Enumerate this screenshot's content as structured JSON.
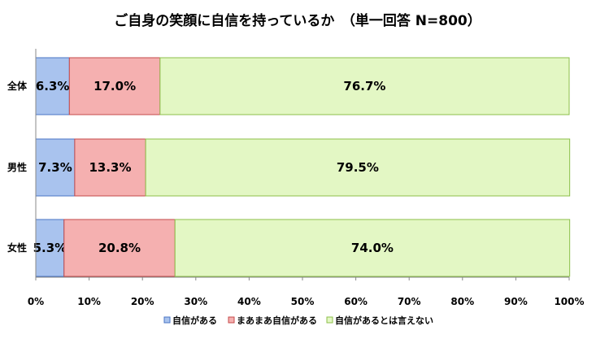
{
  "chart_data": {
    "type": "bar",
    "orientation": "horizontal",
    "stacked": true,
    "percent": true,
    "title": "ご自身の笑顔に自信を持っているか　（単一回答 N=800）",
    "categories": [
      "全体",
      "男性",
      "女性"
    ],
    "series": [
      {
        "name": "自信がある",
        "values": [
          6.3,
          7.3,
          5.3
        ],
        "color": "#a9c3ee",
        "edge": "#4a74c4"
      },
      {
        "name": "まあまあ自信がある",
        "values": [
          17.0,
          13.3,
          20.8
        ],
        "color": "#f5b0b0",
        "edge": "#c44a4a"
      },
      {
        "name": "自信があるとは言えない",
        "values": [
          76.7,
          79.5,
          74.0
        ],
        "color": "#e3f7c4",
        "edge": "#8cbf4a"
      }
    ],
    "value_labels": [
      [
        "6.3%",
        "17.0%",
        "76.7%"
      ],
      [
        "7.3%",
        "13.3%",
        "79.5%"
      ],
      [
        "5.3%",
        "20.8%",
        "74.0%"
      ]
    ],
    "xlim": [
      0,
      100
    ],
    "xticks": [
      "0%",
      "10%",
      "20%",
      "30%",
      "40%",
      "50%",
      "60%",
      "70%",
      "80%",
      "90%",
      "100%"
    ],
    "grid": false,
    "legend": "bottom"
  }
}
